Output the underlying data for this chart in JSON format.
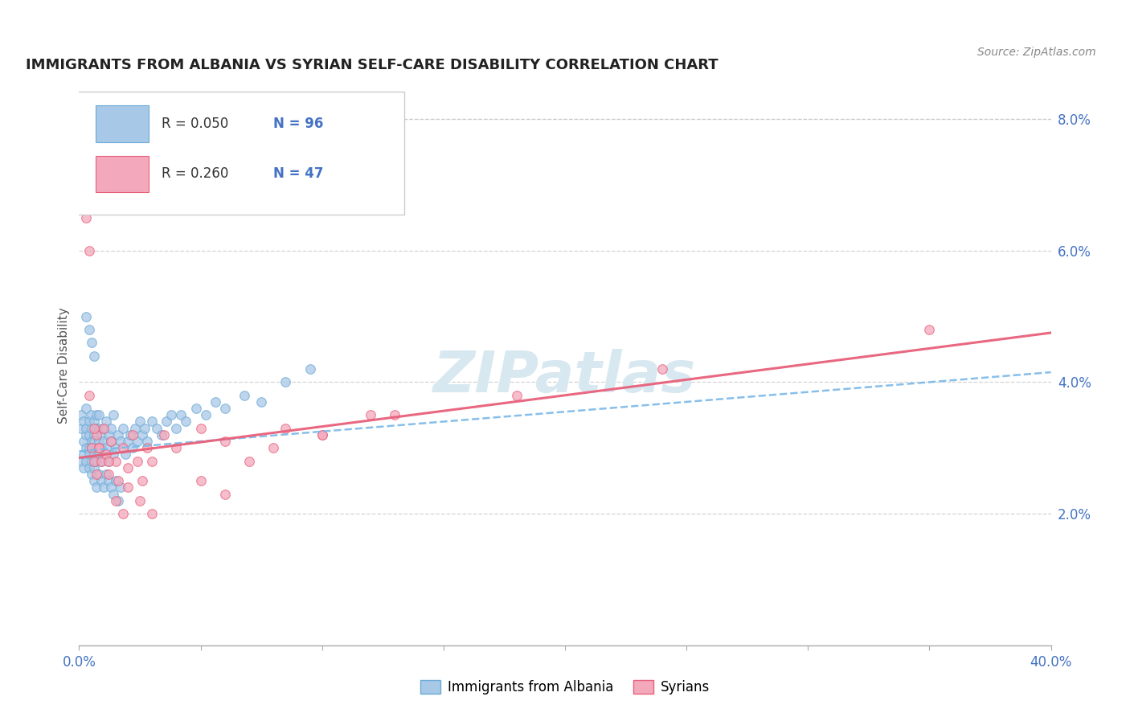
{
  "title": "IMMIGRANTS FROM ALBANIA VS SYRIAN SELF-CARE DISABILITY CORRELATION CHART",
  "source": "Source: ZipAtlas.com",
  "ylabel": "Self-Care Disability",
  "xlim": [
    0.0,
    0.4
  ],
  "ylim": [
    0.0,
    0.085
  ],
  "x_ticks": [
    0.0,
    0.05,
    0.1,
    0.15,
    0.2,
    0.25,
    0.3,
    0.35,
    0.4
  ],
  "x_tick_labels": [
    "0.0%",
    "",
    "",
    "",
    "",
    "",
    "",
    "",
    "40.0%"
  ],
  "y_ticks_right": [
    0.02,
    0.04,
    0.06,
    0.08
  ],
  "y_tick_labels_right": [
    "2.0%",
    "4.0%",
    "6.0%",
    "8.0%"
  ],
  "color_albania": "#a8c8e8",
  "color_albania_edge": "#6aaad4",
  "color_syria": "#f4a8bc",
  "color_syria_edge": "#e8607a",
  "color_line_albania": "#7ab8e8",
  "color_line_syria": "#e8607a",
  "color_axis_label": "#4472c4",
  "watermark_color": "#d8e8f0",
  "watermark_text": "ZIPatlas",
  "legend_r1": "R = 0.050",
  "legend_n1": "N = 96",
  "legend_r2": "R = 0.260",
  "legend_n2": "N = 47",
  "albania_x": [
    0.001,
    0.001,
    0.001,
    0.002,
    0.002,
    0.002,
    0.002,
    0.003,
    0.003,
    0.003,
    0.003,
    0.003,
    0.004,
    0.004,
    0.004,
    0.004,
    0.004,
    0.005,
    0.005,
    0.005,
    0.005,
    0.005,
    0.005,
    0.006,
    0.006,
    0.006,
    0.006,
    0.006,
    0.007,
    0.007,
    0.007,
    0.007,
    0.008,
    0.008,
    0.008,
    0.008,
    0.009,
    0.009,
    0.009,
    0.01,
    0.01,
    0.01,
    0.011,
    0.011,
    0.012,
    0.012,
    0.013,
    0.013,
    0.014,
    0.014,
    0.015,
    0.016,
    0.017,
    0.018,
    0.019,
    0.02,
    0.021,
    0.022,
    0.023,
    0.024,
    0.025,
    0.026,
    0.027,
    0.028,
    0.03,
    0.032,
    0.034,
    0.036,
    0.038,
    0.04,
    0.042,
    0.044,
    0.048,
    0.052,
    0.056,
    0.06,
    0.068,
    0.075,
    0.085,
    0.095,
    0.006,
    0.007,
    0.008,
    0.009,
    0.01,
    0.011,
    0.012,
    0.013,
    0.014,
    0.015,
    0.016,
    0.017,
    0.003,
    0.004,
    0.005,
    0.006
  ],
  "albania_y": [
    0.033,
    0.028,
    0.035,
    0.031,
    0.029,
    0.034,
    0.027,
    0.032,
    0.03,
    0.036,
    0.028,
    0.033,
    0.03,
    0.034,
    0.029,
    0.032,
    0.027,
    0.031,
    0.035,
    0.03,
    0.028,
    0.033,
    0.026,
    0.032,
    0.034,
    0.029,
    0.031,
    0.027,
    0.033,
    0.03,
    0.035,
    0.028,
    0.031,
    0.033,
    0.029,
    0.035,
    0.03,
    0.032,
    0.028,
    0.033,
    0.031,
    0.029,
    0.034,
    0.03,
    0.032,
    0.028,
    0.031,
    0.033,
    0.029,
    0.035,
    0.03,
    0.032,
    0.031,
    0.033,
    0.029,
    0.031,
    0.032,
    0.03,
    0.033,
    0.031,
    0.034,
    0.032,
    0.033,
    0.031,
    0.034,
    0.033,
    0.032,
    0.034,
    0.035,
    0.033,
    0.035,
    0.034,
    0.036,
    0.035,
    0.037,
    0.036,
    0.038,
    0.037,
    0.04,
    0.042,
    0.025,
    0.024,
    0.026,
    0.025,
    0.024,
    0.026,
    0.025,
    0.024,
    0.023,
    0.025,
    0.022,
    0.024,
    0.05,
    0.048,
    0.046,
    0.044
  ],
  "syria_x": [
    0.002,
    0.003,
    0.004,
    0.005,
    0.006,
    0.007,
    0.007,
    0.008,
    0.009,
    0.01,
    0.011,
    0.012,
    0.013,
    0.015,
    0.016,
    0.018,
    0.02,
    0.022,
    0.024,
    0.026,
    0.028,
    0.03,
    0.035,
    0.04,
    0.05,
    0.06,
    0.07,
    0.085,
    0.1,
    0.12,
    0.015,
    0.018,
    0.02,
    0.025,
    0.03,
    0.05,
    0.06,
    0.08,
    0.1,
    0.13,
    0.18,
    0.24,
    0.35,
    0.004,
    0.006,
    0.008,
    0.012
  ],
  "syria_y": [
    0.075,
    0.065,
    0.06,
    0.03,
    0.028,
    0.032,
    0.026,
    0.03,
    0.028,
    0.033,
    0.029,
    0.026,
    0.031,
    0.028,
    0.025,
    0.03,
    0.027,
    0.032,
    0.028,
    0.025,
    0.03,
    0.028,
    0.032,
    0.03,
    0.033,
    0.031,
    0.028,
    0.033,
    0.032,
    0.035,
    0.022,
    0.02,
    0.024,
    0.022,
    0.02,
    0.025,
    0.023,
    0.03,
    0.032,
    0.035,
    0.038,
    0.042,
    0.048,
    0.038,
    0.033,
    0.03,
    0.028
  ]
}
